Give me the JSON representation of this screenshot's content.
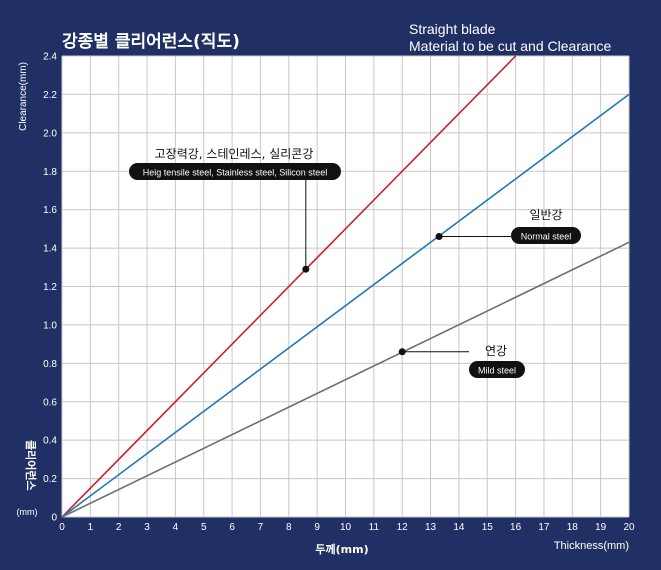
{
  "title_ko": "강종별 클리어런스(직도)",
  "title_en_line1": "Straight blade",
  "title_en_line2": "Material to be cut and Clearance",
  "y_axis_label_en": "Clearance(mm)",
  "y_axis_label_ko": "클리어런스",
  "y_axis_unit": "(mm)",
  "x_axis_label_ko": "두께(mm)",
  "x_axis_label_en": "Thickness(mm)",
  "colors": {
    "background": "#203064",
    "plot": "#ffffff",
    "grid": "#c8c8c8",
    "high": "#c8202e",
    "normal": "#2277b8",
    "mild": "#6e6e6e",
    "tag": "#111111"
  },
  "chart_data": {
    "type": "line",
    "xlim": [
      0,
      20
    ],
    "ylim": [
      0,
      2.4
    ],
    "x_ticks": [
      0,
      1,
      2,
      3,
      4,
      5,
      6,
      7,
      8,
      9,
      10,
      11,
      12,
      13,
      14,
      15,
      16,
      17,
      18,
      19,
      20
    ],
    "x_tick_labels": [
      "0",
      "1",
      "2",
      "3",
      "4",
      "5",
      "6",
      "7",
      "8",
      "9",
      "10",
      "11",
      "12",
      "13",
      "14",
      "15",
      "16",
      "17",
      "18",
      "19",
      "20"
    ],
    "y_ticks": [
      0,
      0.2,
      0.4,
      0.6,
      0.8,
      1.0,
      1.2,
      1.4,
      1.6,
      1.8,
      2.0,
      2.2,
      2.4
    ],
    "y_tick_labels": [
      "0",
      "0.2",
      "0.4",
      "0.6",
      "0.8",
      "1.0",
      "1.2",
      "1.4",
      "1.6",
      "1.8",
      "2.0",
      "2.2",
      "2.4"
    ],
    "grid": true,
    "series": [
      {
        "name": "고장력강, 스테인레스, 실리콘강",
        "name_en": "Heig tensile steel, Stainless steel, Silicon steel",
        "color": "#c8202e",
        "x": [
          0,
          16
        ],
        "y": [
          0,
          2.4
        ],
        "marker": {
          "x": 8.6,
          "y": 1.29
        }
      },
      {
        "name": "일반강",
        "name_en": "Normal steel",
        "color": "#2277b8",
        "x": [
          0,
          20
        ],
        "y": [
          0,
          2.2
        ],
        "marker": {
          "x": 13.3,
          "y": 1.46
        }
      },
      {
        "name": "연강",
        "name_en": "Mild steel",
        "color": "#6e6e6e",
        "x": [
          0,
          20
        ],
        "y": [
          0,
          1.43
        ],
        "marker": {
          "x": 12.0,
          "y": 0.86
        }
      }
    ]
  }
}
